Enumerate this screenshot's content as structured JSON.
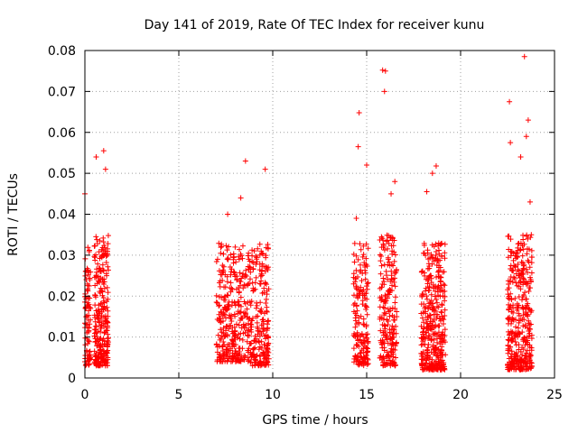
{
  "chart_data": {
    "type": "scatter",
    "title": "Day 141 of 2019, Rate Of TEC Index for receiver kunu",
    "xlabel": "GPS time / hours",
    "ylabel": "ROTI / TECUs",
    "xlim": [
      0,
      25
    ],
    "ylim": [
      0,
      0.08
    ],
    "xticks": [
      "0",
      "5",
      "10",
      "15",
      "20",
      "25"
    ],
    "yticks": [
      "0",
      "0.01",
      "0.02",
      "0.03",
      "0.04",
      "0.05",
      "0.06",
      "0.07",
      "0.08"
    ],
    "grid": true,
    "marker": "+",
    "color": "#ff0000",
    "clusters": [
      {
        "x_range": [
          0.0,
          0.3
        ],
        "y_range": [
          0.003,
          0.032
        ],
        "count": 90
      },
      {
        "x_range": [
          0.5,
          1.25
        ],
        "y_range": [
          0.003,
          0.035
        ],
        "count": 260
      },
      {
        "x_range": [
          7.0,
          8.8
        ],
        "y_range": [
          0.004,
          0.033
        ],
        "count": 330
      },
      {
        "x_range": [
          8.8,
          9.8
        ],
        "y_range": [
          0.003,
          0.033
        ],
        "count": 210
      },
      {
        "x_range": [
          14.3,
          15.1
        ],
        "y_range": [
          0.003,
          0.033
        ],
        "count": 170
      },
      {
        "x_range": [
          15.7,
          16.6
        ],
        "y_range": [
          0.003,
          0.035
        ],
        "count": 210
      },
      {
        "x_range": [
          17.9,
          19.2
        ],
        "y_range": [
          0.002,
          0.033
        ],
        "count": 380
      },
      {
        "x_range": [
          22.5,
          23.8
        ],
        "y_range": [
          0.002,
          0.035
        ],
        "count": 380
      }
    ],
    "notable_points": [
      {
        "x": 0.0,
        "y": 0.045
      },
      {
        "x": 0.6,
        "y": 0.054
      },
      {
        "x": 1.0,
        "y": 0.0555
      },
      {
        "x": 1.1,
        "y": 0.051
      },
      {
        "x": 8.55,
        "y": 0.053
      },
      {
        "x": 8.3,
        "y": 0.044
      },
      {
        "x": 7.6,
        "y": 0.04
      },
      {
        "x": 9.6,
        "y": 0.051
      },
      {
        "x": 14.6,
        "y": 0.0648
      },
      {
        "x": 14.55,
        "y": 0.0565
      },
      {
        "x": 14.45,
        "y": 0.039
      },
      {
        "x": 15.0,
        "y": 0.052
      },
      {
        "x": 15.85,
        "y": 0.0752
      },
      {
        "x": 16.0,
        "y": 0.075
      },
      {
        "x": 15.95,
        "y": 0.07
      },
      {
        "x": 16.3,
        "y": 0.045
      },
      {
        "x": 16.5,
        "y": 0.048
      },
      {
        "x": 18.2,
        "y": 0.0455
      },
      {
        "x": 18.5,
        "y": 0.05
      },
      {
        "x": 18.7,
        "y": 0.0518
      },
      {
        "x": 22.6,
        "y": 0.0675
      },
      {
        "x": 22.65,
        "y": 0.0575
      },
      {
        "x": 23.4,
        "y": 0.0785
      },
      {
        "x": 23.6,
        "y": 0.063
      },
      {
        "x": 23.5,
        "y": 0.059
      },
      {
        "x": 23.2,
        "y": 0.054
      },
      {
        "x": 23.7,
        "y": 0.043
      }
    ]
  }
}
